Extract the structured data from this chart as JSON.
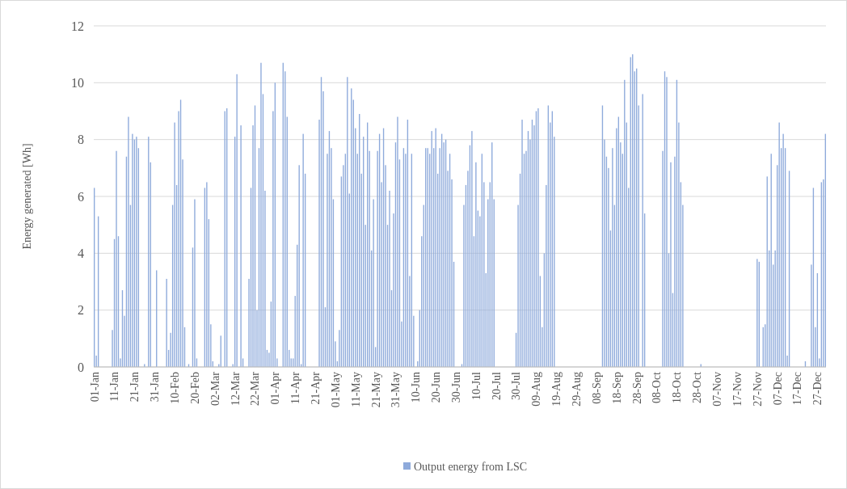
{
  "chart_data": {
    "type": "bar",
    "ylabel": "Energy generated [Wh]",
    "ylim": [
      0,
      12
    ],
    "yticks": [
      0,
      2,
      4,
      6,
      8,
      10,
      12
    ],
    "grid": "y",
    "legend": "bottom",
    "categories": [
      "01-Jan",
      null,
      null,
      null,
      null,
      null,
      null,
      null,
      null,
      null,
      "11-Jan",
      null,
      null,
      null,
      null,
      null,
      null,
      null,
      null,
      null,
      "21-Jan",
      null,
      null,
      null,
      null,
      null,
      null,
      null,
      null,
      null,
      "31-Jan",
      null,
      null,
      null,
      null,
      null,
      null,
      null,
      null,
      null,
      "10-Feb",
      null,
      null,
      null,
      null,
      null,
      null,
      null,
      null,
      null,
      "20-Feb",
      null,
      null,
      null,
      null,
      null,
      null,
      null,
      null,
      null,
      "02-Mar",
      null,
      null,
      null,
      null,
      null,
      null,
      null,
      null,
      null,
      "12-Mar",
      null,
      null,
      null,
      null,
      null,
      null,
      null,
      null,
      null,
      "22-Mar",
      null,
      null,
      null,
      null,
      null,
      null,
      null,
      null,
      null,
      "01-Apr",
      null,
      null,
      null,
      null,
      null,
      null,
      null,
      null,
      null,
      "11-Apr",
      null,
      null,
      null,
      null,
      null,
      null,
      null,
      null,
      null,
      "21-Apr",
      null,
      null,
      null,
      null,
      null,
      null,
      null,
      null,
      null,
      "01-May",
      null,
      null,
      null,
      null,
      null,
      null,
      null,
      null,
      null,
      "11-May",
      null,
      null,
      null,
      null,
      null,
      null,
      null,
      null,
      null,
      "21-May",
      null,
      null,
      null,
      null,
      null,
      null,
      null,
      null,
      null,
      "31-May",
      null,
      null,
      null,
      null,
      null,
      null,
      null,
      null,
      null,
      "10-Jun",
      null,
      null,
      null,
      null,
      null,
      null,
      null,
      null,
      null,
      "20-Jun",
      null,
      null,
      null,
      null,
      null,
      null,
      null,
      null,
      null,
      "30-Jun",
      null,
      null,
      null,
      null,
      null,
      null,
      null,
      null,
      null,
      "10-Jul",
      null,
      null,
      null,
      null,
      null,
      null,
      null,
      null,
      null,
      "20-Jul",
      null,
      null,
      null,
      null,
      null,
      null,
      null,
      null,
      null,
      "30-Jul",
      null,
      null,
      null,
      null,
      null,
      null,
      null,
      null,
      null,
      "09-Aug",
      null,
      null,
      null,
      null,
      null,
      null,
      null,
      null,
      null,
      "19-Aug",
      null,
      null,
      null,
      null,
      null,
      null,
      null,
      null,
      null,
      "29-Aug",
      null,
      null,
      null,
      null,
      null,
      null,
      null,
      null,
      null,
      "08-Sep",
      null,
      null,
      null,
      null,
      null,
      null,
      null,
      null,
      null,
      "18-Sep",
      null,
      null,
      null,
      null,
      null,
      null,
      null,
      null,
      null,
      "28-Sep",
      null,
      null,
      null,
      null,
      null,
      null,
      null,
      null,
      null,
      "08-Oct",
      null,
      null,
      null,
      null,
      null,
      null,
      null,
      null,
      null,
      "18-Oct",
      null,
      null,
      null,
      null,
      null,
      null,
      null,
      null,
      null,
      "28-Oct",
      null,
      null,
      null,
      null,
      null,
      null,
      null,
      null,
      null,
      "07-Nov",
      null,
      null,
      null,
      null,
      null,
      null,
      null,
      null,
      null,
      "17-Nov",
      null,
      null,
      null,
      null,
      null,
      null,
      null,
      null,
      null,
      "27-Nov",
      null,
      null,
      null,
      null,
      null,
      null,
      null,
      null,
      null,
      "07-Dec",
      null,
      null,
      null,
      null,
      null,
      null,
      null,
      null,
      null,
      "17-Dec",
      null,
      null,
      null,
      null,
      null,
      null,
      null,
      null,
      null,
      "27-Dec",
      null,
      null,
      null,
      null
    ],
    "series": [
      {
        "name": "Output energy from LSC",
        "color": "#8eaadb",
        "values": [
          6.3,
          0.4,
          5.3,
          0,
          0,
          0,
          0,
          0,
          0,
          1.3,
          4.5,
          7.6,
          4.6,
          0.3,
          2.7,
          1.8,
          7.4,
          8.8,
          5.7,
          8.2,
          8.0,
          8.1,
          7.7,
          0,
          0,
          0.1,
          0,
          8.1,
          7.2,
          0,
          0,
          3.4,
          0,
          0,
          0,
          0,
          3.1,
          0.6,
          1.2,
          5.7,
          8.6,
          6.4,
          9.0,
          9.4,
          7.3,
          1.4,
          0,
          0.1,
          0,
          4.2,
          5.9,
          0.3,
          0,
          0,
          0,
          6.3,
          6.5,
          5.2,
          1.5,
          0.2,
          0,
          0,
          0.1,
          1.1,
          0,
          9.0,
          9.1,
          0,
          0,
          0.1,
          8.1,
          10.3,
          0,
          8.5,
          0.3,
          0,
          0,
          3.1,
          6.3,
          8.5,
          9.2,
          2.0,
          7.7,
          10.7,
          9.6,
          6.2,
          0.6,
          0.5,
          2.3,
          9.0,
          10.0,
          0.3,
          0,
          0,
          10.7,
          10.4,
          8.8,
          0.6,
          0.3,
          0.3,
          2.5,
          4.3,
          7.1,
          0.1,
          8.2,
          6.8,
          0,
          0,
          0,
          0,
          0,
          0,
          8.7,
          10.2,
          9.7,
          2.1,
          7.5,
          8.3,
          7.7,
          5.9,
          0.9,
          0.2,
          1.3,
          6.7,
          7.1,
          7.5,
          10.2,
          6.1,
          9.8,
          9.4,
          8.4,
          7.5,
          8.9,
          6.8,
          8.1,
          5.0,
          8.6,
          7.6,
          4.1,
          5.9,
          0.7,
          7.6,
          8.2,
          6.5,
          8.4,
          7.1,
          5.0,
          6.2,
          2.7,
          5.4,
          7.9,
          8.8,
          7.3,
          1.6,
          7.7,
          7.5,
          8.7,
          3.2,
          7.5,
          1.8,
          0,
          0.2,
          2.0,
          4.6,
          5.7,
          7.7,
          7.7,
          7.5,
          8.3,
          7.7,
          8.4,
          6.8,
          7.7,
          8.2,
          7.9,
          8.0,
          6.9,
          7.5,
          6.6,
          3.7,
          0,
          0,
          0,
          0.1,
          5.7,
          6.4,
          6.9,
          7.8,
          8.3,
          4.6,
          7.2,
          5.5,
          5.3,
          7.5,
          6.5,
          3.3,
          5.9,
          6.5,
          7.9,
          5.9,
          0,
          0,
          0,
          0,
          0,
          0,
          0,
          0,
          0,
          0,
          1.2,
          5.7,
          6.8,
          8.7,
          7.5,
          7.6,
          8.3,
          8.0,
          8.7,
          8.5,
          9.0,
          9.1,
          3.2,
          1.4,
          4.0,
          6.4,
          9.2,
          8.6,
          9.0,
          8.1,
          0,
          0,
          0,
          0,
          0,
          0,
          0,
          0,
          0,
          0,
          0,
          0,
          0,
          0,
          0,
          0,
          0,
          0,
          0,
          0,
          0,
          0,
          0,
          9.2,
          8.0,
          7.4,
          7.0,
          4.8,
          7.7,
          5.7,
          8.4,
          8.8,
          7.9,
          7.5,
          10.1,
          8.6,
          6.3,
          10.9,
          11.0,
          10.4,
          10.5,
          9.2,
          0,
          9.6,
          5.4,
          0,
          0,
          0,
          0,
          0,
          0,
          0,
          0,
          7.6,
          10.4,
          10.2,
          4.0,
          7.2,
          2.6,
          7.4,
          10.1,
          8.6,
          6.5,
          5.7,
          0,
          0,
          0,
          0,
          0,
          0,
          0,
          0,
          0.1,
          0,
          0,
          0,
          0,
          0,
          0,
          0,
          0,
          0,
          0,
          0,
          0,
          0,
          0,
          0,
          0,
          0,
          0,
          0,
          0,
          0,
          0,
          0,
          0,
          0,
          0,
          0,
          3.8,
          3.7,
          0,
          1.4,
          1.5,
          6.7,
          4.1,
          7.5,
          3.6,
          4.1,
          7.1,
          8.6,
          7.7,
          8.2,
          7.7,
          0.4,
          6.9,
          0,
          0,
          0,
          0,
          0,
          0,
          0,
          0.2,
          0,
          0,
          3.6,
          6.3,
          1.4,
          3.3,
          0.3,
          6.5,
          6.6,
          8.2
        ]
      }
    ]
  }
}
